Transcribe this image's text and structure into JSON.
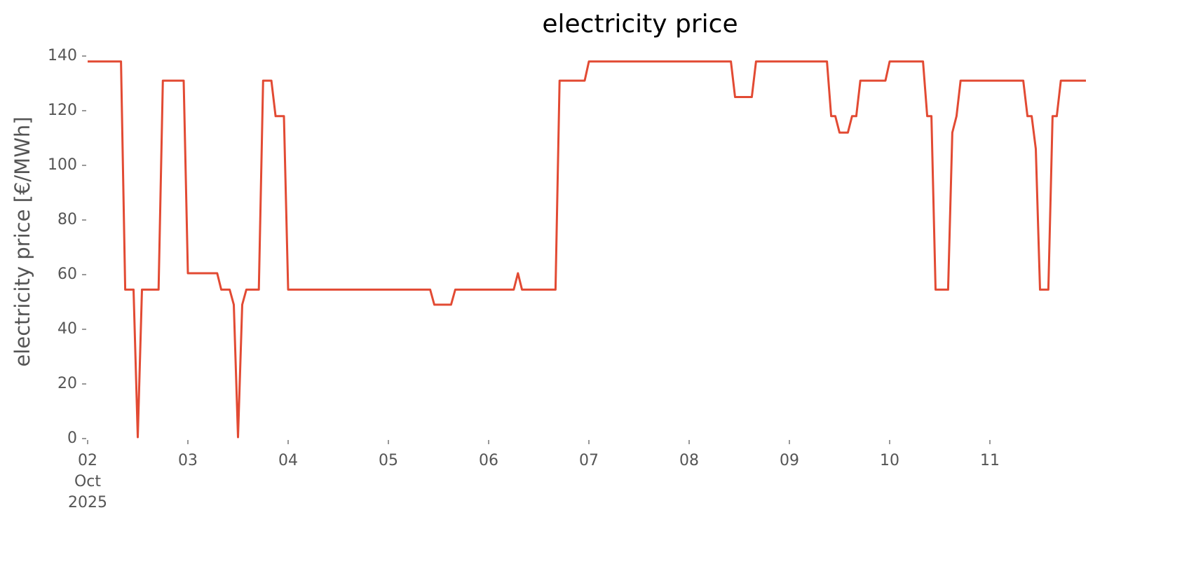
{
  "chart_data": {
    "type": "line",
    "title": "electricity price",
    "ylabel": "electricity price [€/MWh]",
    "x": [
      2,
      2.333,
      2.375,
      2.458,
      2.5,
      2.542,
      2.708,
      2.75,
      2.958,
      3,
      3.292,
      3.333,
      3.417,
      3.458,
      3.5,
      3.542,
      3.583,
      3.708,
      3.75,
      3.833,
      3.875,
      3.958,
      4,
      5.417,
      5.458,
      5.625,
      5.667,
      6.25,
      6.292,
      6.333,
      6.667,
      6.708,
      6.958,
      7,
      8.417,
      8.458,
      8.625,
      8.667,
      9.375,
      9.417,
      9.458,
      9.5,
      9.583,
      9.625,
      9.667,
      9.708,
      9.958,
      10,
      10.333,
      10.375,
      10.417,
      10.458,
      10.583,
      10.625,
      10.667,
      10.708,
      11.333,
      11.375,
      11.417,
      11.458,
      11.5,
      11.583,
      11.625,
      11.667,
      11.708,
      11.958
    ],
    "values": [
      138,
      138,
      54.5,
      54.5,
      0.5,
      54.5,
      54.5,
      131,
      131,
      60.5,
      60.5,
      54.5,
      54.5,
      49,
      0.5,
      49,
      54.5,
      54.5,
      131,
      131,
      118,
      118,
      54.5,
      54.5,
      49,
      49,
      54.5,
      54.5,
      60.5,
      54.5,
      54.5,
      131,
      131,
      138,
      138,
      125,
      125,
      138,
      138,
      118,
      118,
      112,
      112,
      118,
      118,
      131,
      131,
      138,
      138,
      118,
      118,
      54.5,
      54.5,
      112,
      118,
      131,
      131,
      118,
      118,
      106,
      54.5,
      54.5,
      118,
      118,
      131,
      131
    ],
    "color": "#e24a33",
    "xlim": [
      2,
      11.958
    ],
    "xticks": [
      {
        "value": 2,
        "label": "02\nOct\n2025"
      },
      {
        "value": 3,
        "label": "03"
      },
      {
        "value": 4,
        "label": "04"
      },
      {
        "value": 5,
        "label": "05"
      },
      {
        "value": 6,
        "label": "06"
      },
      {
        "value": 7,
        "label": "07"
      },
      {
        "value": 8,
        "label": "08"
      },
      {
        "value": 9,
        "label": "09"
      },
      {
        "value": 10,
        "label": "10"
      },
      {
        "value": 11,
        "label": "11"
      }
    ],
    "ylim": [
      0,
      140
    ],
    "yticks": [
      0,
      20,
      40,
      60,
      80,
      100,
      120,
      140
    ],
    "grid": false
  }
}
